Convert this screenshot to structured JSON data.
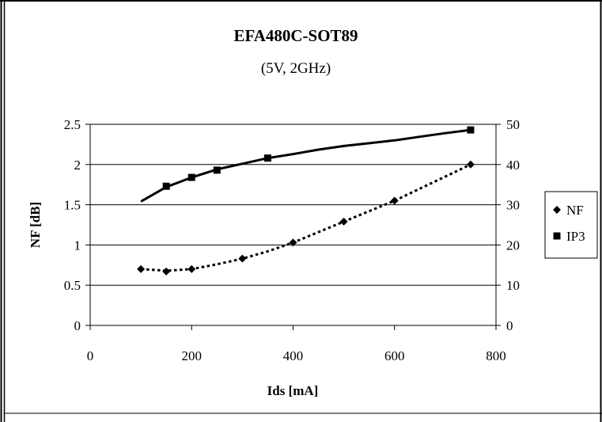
{
  "chart_data": {
    "type": "line",
    "title": "EFA480C-SOT89",
    "subtitle": "(5V, 2GHz)",
    "xlabel": "Ids [mA]",
    "ylabel": "NF [dB]",
    "y2label": "",
    "xlim": [
      0,
      800
    ],
    "ylim": [
      0,
      2.5
    ],
    "y2lim": [
      0,
      50
    ],
    "x_ticks": [
      "0",
      "200",
      "400",
      "600",
      "800"
    ],
    "y_ticks": [
      "0",
      "0.5",
      "1",
      "1.5",
      "2",
      "2.5"
    ],
    "y2_ticks": [
      "0",
      "10",
      "20",
      "30",
      "40",
      "50"
    ],
    "grid": true,
    "legend_position": "right",
    "series": [
      {
        "name": "NF",
        "axis": "left",
        "marker": "diamond",
        "line_style": "dotted",
        "x": [
          100,
          150,
          200,
          300,
          400,
          500,
          600,
          750
        ],
        "y": [
          0.7,
          0.67,
          0.7,
          0.83,
          1.03,
          1.29,
          1.55,
          2.0
        ]
      },
      {
        "name": "IP3",
        "axis": "right",
        "marker": "square",
        "line_style": "solid",
        "x": [
          150,
          200,
          250,
          350,
          750
        ],
        "y": [
          34.6,
          36.8,
          38.6,
          41.6,
          48.6
        ]
      }
    ],
    "trendlines": [
      {
        "series": "NF",
        "style": "dotted",
        "x": [
          100,
          150,
          200,
          250,
          300,
          350,
          400,
          450,
          500,
          550,
          600,
          650,
          700,
          750
        ],
        "y": [
          0.7,
          0.68,
          0.7,
          0.76,
          0.83,
          0.92,
          1.03,
          1.16,
          1.29,
          1.42,
          1.55,
          1.7,
          1.85,
          2.0
        ]
      },
      {
        "series": "IP3",
        "style": "solid",
        "x": [
          100,
          150,
          200,
          250,
          300,
          350,
          400,
          450,
          500,
          550,
          600,
          650,
          700,
          750
        ],
        "y": [
          30.8,
          34.4,
          36.8,
          38.8,
          40.2,
          41.6,
          42.6,
          43.7,
          44.6,
          45.3,
          46.0,
          46.9,
          47.8,
          48.6
        ]
      }
    ]
  }
}
